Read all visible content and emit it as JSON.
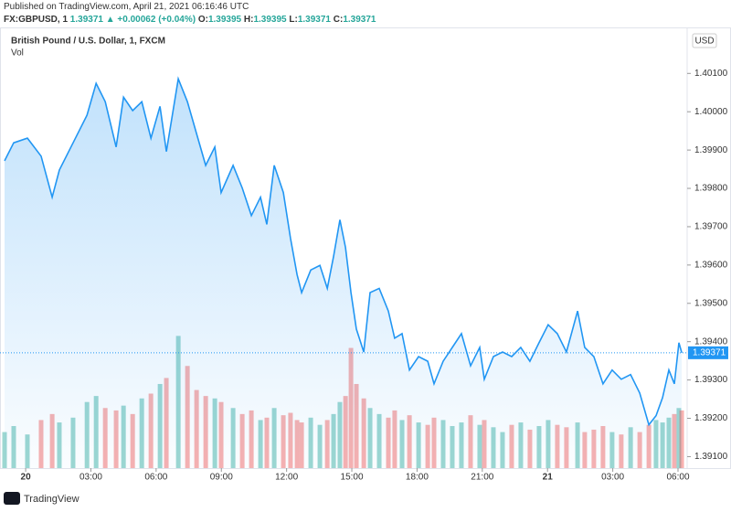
{
  "header": {
    "published": "Published on TradingView.com, April 21, 2021 06:16:46 UTC",
    "symbol": "FX:GBPUSD, 1",
    "last": "1.39371",
    "arrow": "▲",
    "change": "+0.00062 (+0.04%)",
    "o_label": "O:",
    "o": "1.39395",
    "h_label": "H:",
    "h": "1.39395",
    "l_label": "L:",
    "l": "1.39371",
    "c_label": "C:",
    "c": "1.39371"
  },
  "footer": {
    "brand": "TradingView"
  },
  "chart_data": {
    "type": "area",
    "title": "British Pound / U.S. Dollar, 1, FXCM",
    "currency": "USD",
    "x": [
      -0.97,
      -0.55,
      0.08,
      0.71,
      1.22,
      1.55,
      2.18,
      2.82,
      3.24,
      3.66,
      4.16,
      4.5,
      4.92,
      5.34,
      5.76,
      6.18,
      6.47,
      7.02,
      7.44,
      7.86,
      8.28,
      8.7,
      8.99,
      9.54,
      9.96,
      10.38,
      10.8,
      11.09,
      11.43,
      11.85,
      12.18,
      12.48,
      12.69,
      13.11,
      13.53,
      13.87,
      14.16,
      14.45,
      14.71,
      14.96,
      15.21,
      15.55,
      15.84,
      16.26,
      16.68,
      16.97,
      17.31,
      17.65,
      18.07,
      18.49,
      18.78,
      19.2,
      19.62,
      20.04,
      20.46,
      20.88,
      21.09,
      21.51,
      21.93,
      22.35,
      22.77,
      23.19,
      23.61,
      24.03,
      24.45,
      24.87,
      25.38,
      25.71,
      26.13,
      26.55,
      26.97,
      27.39,
      27.82,
      28.24,
      28.66,
      28.99,
      29.29,
      29.58,
      29.83,
      30.04,
      30.17
    ],
    "series": [
      {
        "name": "GBPUSD",
        "color": "#2196f3",
        "values": [
          1.39872,
          1.39919,
          1.39931,
          1.39884,
          1.39777,
          1.39848,
          1.39919,
          1.39991,
          1.40074,
          1.40026,
          1.39908,
          1.40038,
          1.40003,
          1.40026,
          1.39931,
          1.40014,
          1.39896,
          1.40086,
          1.40026,
          1.39943,
          1.3986,
          1.39908,
          1.39789,
          1.3986,
          1.39801,
          1.39729,
          1.39777,
          1.39706,
          1.3986,
          1.39789,
          1.3967,
          1.39575,
          1.39528,
          1.39587,
          1.39599,
          1.39539,
          1.39623,
          1.39718,
          1.39646,
          1.39528,
          1.39433,
          1.39373,
          1.39528,
          1.39539,
          1.3948,
          1.39409,
          1.39421,
          1.39326,
          1.39361,
          1.39349,
          1.3929,
          1.39349,
          1.39385,
          1.39421,
          1.39337,
          1.39385,
          1.39302,
          1.39361,
          1.39373,
          1.39361,
          1.39385,
          1.39349,
          1.39397,
          1.39444,
          1.39421,
          1.39373,
          1.3948,
          1.39385,
          1.39361,
          1.3929,
          1.39326,
          1.39302,
          1.39314,
          1.39266,
          1.39183,
          1.39207,
          1.39254,
          1.39326,
          1.3929,
          1.39397,
          1.39371
        ]
      }
    ],
    "volume": {
      "name": "Vol",
      "up_color": "#26a69a",
      "down_color": "#ef5350",
      "values": [
        30,
        35,
        28,
        40,
        45,
        38,
        42,
        55,
        60,
        50,
        48,
        52,
        45,
        58,
        62,
        70,
        75,
        110,
        85,
        65,
        60,
        58,
        55,
        50,
        45,
        48,
        40,
        42,
        50,
        44,
        46,
        40,
        38,
        42,
        36,
        40,
        45,
        55,
        60,
        100,
        70,
        58,
        50,
        45,
        42,
        48,
        40,
        44,
        38,
        36,
        42,
        40,
        35,
        38,
        44,
        36,
        40,
        34,
        30,
        36,
        38,
        32,
        35,
        40,
        36,
        34,
        38,
        30,
        32,
        35,
        30,
        28,
        34,
        30,
        36,
        40,
        38,
        42,
        45,
        50,
        48
      ]
    },
    "last_price": {
      "value": 1.39371,
      "label": "1.39371"
    },
    "xlim": [
      -1.18,
      30.42
    ],
    "ylim": [
      1.3907,
      1.4022
    ],
    "xticks": [
      {
        "value": 0,
        "label": "20"
      },
      {
        "value": 3,
        "label": "03:00"
      },
      {
        "value": 6,
        "label": "06:00"
      },
      {
        "value": 9,
        "label": "09:00"
      },
      {
        "value": 12,
        "label": "12:00"
      },
      {
        "value": 15,
        "label": "15:00"
      },
      {
        "value": 18,
        "label": "18:00"
      },
      {
        "value": 21,
        "label": "21:00"
      },
      {
        "value": 24,
        "label": "21"
      },
      {
        "value": 27,
        "label": "03:00"
      },
      {
        "value": 30,
        "label": "06:00"
      }
    ],
    "yticks": [
      {
        "value": 1.391,
        "label": "1.39100"
      },
      {
        "value": 1.392,
        "label": "1.39200"
      },
      {
        "value": 1.393,
        "label": "1.39300"
      },
      {
        "value": 1.394,
        "label": "1.39400"
      },
      {
        "value": 1.395,
        "label": "1.39500"
      },
      {
        "value": 1.396,
        "label": "1.39600"
      },
      {
        "value": 1.397,
        "label": "1.39700"
      },
      {
        "value": 1.398,
        "label": "1.39800"
      },
      {
        "value": 1.399,
        "label": "1.39900"
      },
      {
        "value": 1.4,
        "label": "1.40000"
      },
      {
        "value": 1.401,
        "label": "1.40100"
      }
    ],
    "grid": false
  }
}
